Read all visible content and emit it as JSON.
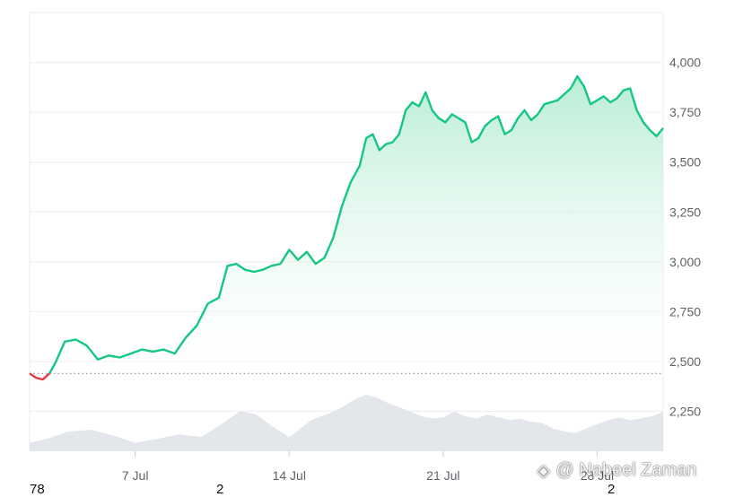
{
  "chart_data": {
    "type": "line",
    "y_ticks": [
      2250,
      2500,
      2750,
      3000,
      3250,
      3500,
      3750,
      4000
    ],
    "y_tick_labels": [
      "2,250",
      "2,500",
      "2,750",
      "3,000",
      "3,250",
      "3,500",
      "3,750",
      "4,000"
    ],
    "ylim": [
      2050,
      4250
    ],
    "x_ticks": [
      {
        "day": 7,
        "label": "7 Jul"
      },
      {
        "day": 14,
        "label": "14 Jul"
      },
      {
        "day": 21,
        "label": "21 Jul"
      },
      {
        "day": 28,
        "label": "28 Jul"
      }
    ],
    "xlim": [
      2.2,
      31.0
    ],
    "baseline": 2440,
    "grid": true,
    "series": [
      {
        "values_x": [
          2.2,
          2.5,
          2.8,
          3.1,
          3.4,
          3.8,
          4.3,
          4.8,
          5.3,
          5.8,
          6.3,
          6.8,
          7.3,
          7.8,
          8.3,
          8.8,
          9.3,
          9.8,
          10.3,
          10.8,
          11.2,
          11.6,
          12.0,
          12.4,
          12.8,
          13.2,
          13.6,
          14.0,
          14.4,
          14.8,
          15.2,
          15.6,
          16.0,
          16.4,
          16.8,
          17.2,
          17.5,
          17.8,
          18.1,
          18.4,
          18.7,
          19.0,
          19.3,
          19.6,
          19.9,
          20.2,
          20.5,
          20.8,
          21.1,
          21.4,
          21.7,
          22.0,
          22.3,
          22.6,
          22.9,
          23.2,
          23.5,
          23.8,
          24.1,
          24.4,
          24.7,
          25.0,
          25.3,
          25.6,
          25.9,
          26.2,
          26.5,
          26.8,
          27.1,
          27.4,
          27.7,
          28.0,
          28.3,
          28.6,
          28.9,
          29.2,
          29.5,
          29.8,
          30.1,
          30.4,
          30.7,
          31.0
        ],
        "values_y": [
          2440,
          2418,
          2410,
          2440,
          2500,
          2600,
          2610,
          2580,
          2510,
          2530,
          2520,
          2540,
          2560,
          2550,
          2560,
          2540,
          2620,
          2680,
          2790,
          2820,
          2980,
          2990,
          2960,
          2950,
          2960,
          2980,
          2990,
          3060,
          3010,
          3050,
          2990,
          3020,
          3120,
          3280,
          3400,
          3480,
          3620,
          3640,
          3560,
          3590,
          3600,
          3640,
          3760,
          3800,
          3780,
          3850,
          3760,
          3720,
          3700,
          3740,
          3720,
          3700,
          3600,
          3620,
          3680,
          3710,
          3730,
          3640,
          3660,
          3720,
          3760,
          3710,
          3740,
          3790,
          3800,
          3810,
          3840,
          3870,
          3930,
          3880,
          3790,
          3810,
          3830,
          3800,
          3820,
          3860,
          3870,
          3760,
          3700,
          3660,
          3630,
          3670
        ]
      }
    ],
    "volume": {
      "x": [
        2.2,
        3.0,
        4.0,
        5.0,
        6.0,
        7.0,
        8.0,
        9.0,
        10.0,
        11.0,
        11.8,
        12.5,
        13.2,
        14.0,
        15.0,
        16.0,
        16.5,
        17.0,
        17.5,
        18.0,
        18.5,
        19.0,
        19.5,
        20.0,
        20.5,
        21.0,
        21.5,
        22.0,
        22.5,
        23.0,
        23.5,
        24.0,
        24.5,
        25.0,
        25.5,
        26.0,
        26.5,
        27.0,
        27.5,
        28.0,
        28.5,
        29.0,
        29.5,
        30.0,
        30.5,
        31.0
      ],
      "level": [
        0.15,
        0.22,
        0.35,
        0.38,
        0.28,
        0.15,
        0.22,
        0.3,
        0.25,
        0.5,
        0.72,
        0.65,
        0.45,
        0.25,
        0.55,
        0.7,
        0.8,
        0.92,
        1.0,
        0.95,
        0.85,
        0.78,
        0.7,
        0.62,
        0.58,
        0.6,
        0.7,
        0.62,
        0.58,
        0.65,
        0.6,
        0.55,
        0.58,
        0.52,
        0.5,
        0.4,
        0.35,
        0.32,
        0.4,
        0.48,
        0.55,
        0.6,
        0.55,
        0.58,
        0.62,
        0.7
      ]
    },
    "colors": {
      "line_up": "#16c784",
      "line_down": "#ea3943",
      "area_top": "#b5ecd3",
      "grid": "#eeeeee",
      "volume": "#e3e6ea",
      "baseline": "#8c8c8c"
    }
  },
  "overlay": {
    "left_fragment": "78",
    "mid_fragment": "2",
    "right_fragment": "2",
    "watermark_text": "@ Nabeel Zaman",
    "watermark_icon": "binance-diamond-icon"
  }
}
